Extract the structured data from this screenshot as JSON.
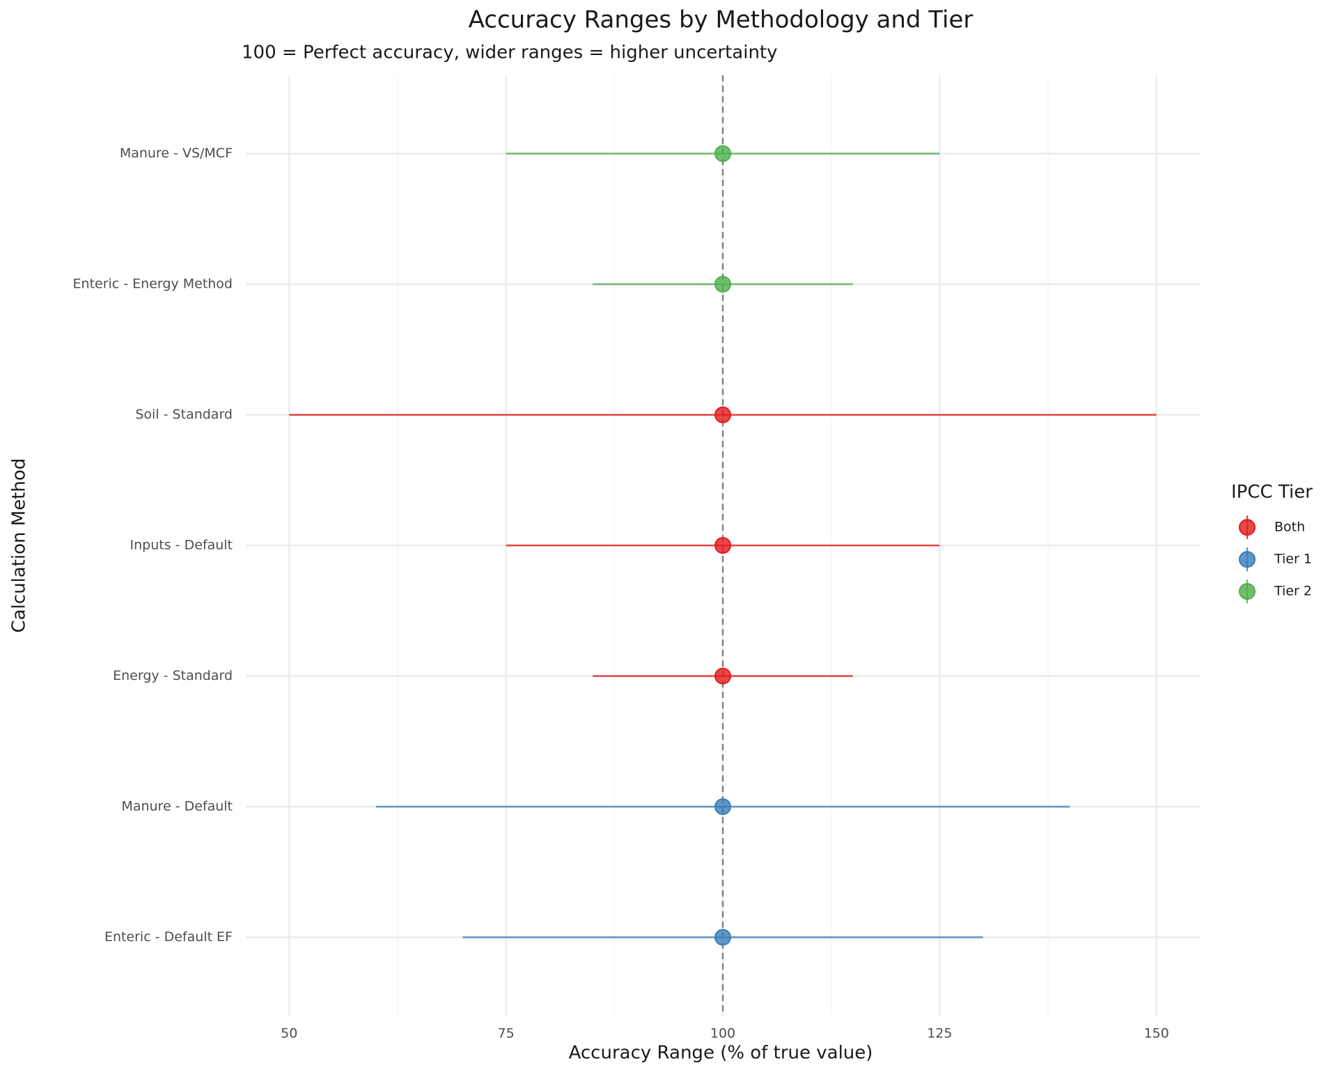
{
  "chart_data": {
    "type": "errorbar",
    "title": "Accuracy Ranges by Methodology and Tier",
    "subtitle": "100 = Perfect accuracy, wider ranges = higher uncertainty",
    "x_label": "Accuracy Range (% of true value)",
    "y_label": "Calculation Method",
    "legend_title": "IPCC Tier",
    "legend_position": "right",
    "grid": true,
    "categories": [
      "Manure - VS/MCF",
      "Enteric - Energy Method",
      "Soil - Standard",
      "Inputs - Default",
      "Energy - Standard",
      "Manure - Default",
      "Enteric - Default EF"
    ],
    "xlim": [
      45,
      155
    ],
    "xticks": [
      50,
      75,
      100,
      125,
      150
    ],
    "xminor_ticks": [
      62.5,
      87.5,
      112.5,
      137.5
    ],
    "xline": 100,
    "series": [
      {
        "name": "Both",
        "color": "#e41a1c",
        "values": [
          null,
          null,
          100,
          100,
          100,
          null,
          null
        ],
        "low": [
          null,
          null,
          50,
          75,
          85,
          null,
          null
        ],
        "high": [
          null,
          null,
          150,
          125,
          115,
          null,
          null
        ]
      },
      {
        "name": "Tier 1",
        "color": "#377eb8",
        "values": [
          null,
          null,
          null,
          null,
          null,
          100,
          100
        ],
        "low": [
          null,
          null,
          null,
          null,
          null,
          60,
          70
        ],
        "high": [
          null,
          null,
          null,
          null,
          null,
          140,
          130
        ]
      },
      {
        "name": "Tier 2",
        "color": "#4daf4a",
        "values": [
          100,
          100,
          null,
          null,
          null,
          null,
          null
        ],
        "low": [
          75,
          85,
          null,
          null,
          null,
          null,
          null
        ],
        "high": [
          125,
          115,
          null,
          null,
          null,
          null,
          null
        ]
      }
    ]
  }
}
